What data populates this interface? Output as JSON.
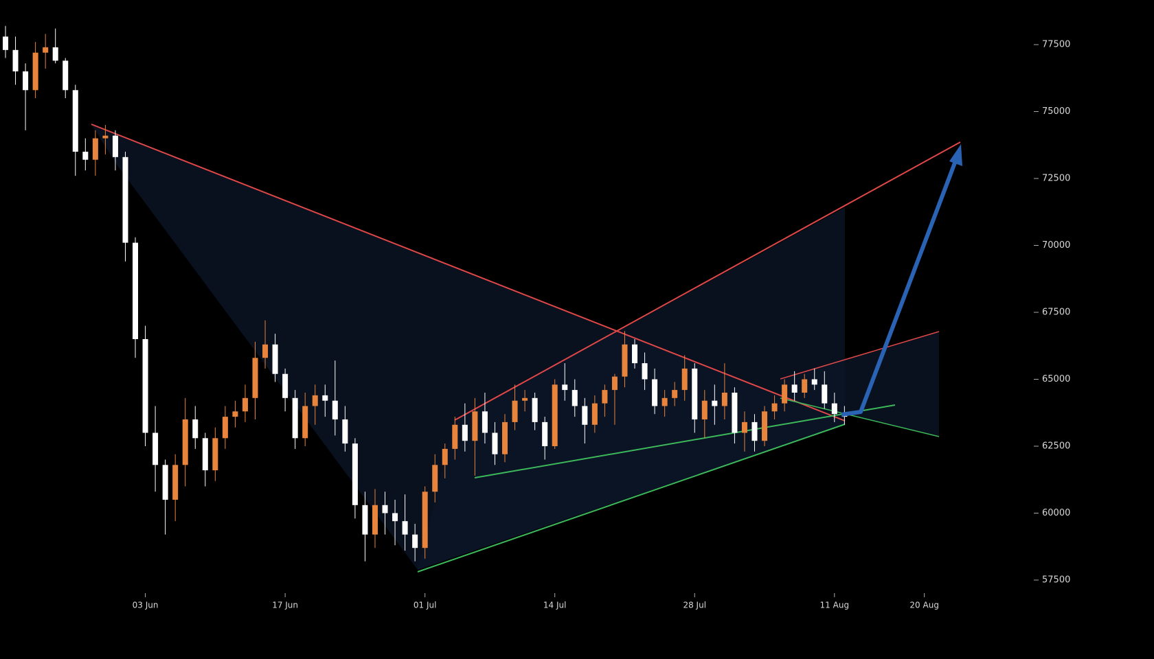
{
  "chart_data": {
    "type": "candlestick",
    "categories": [
      null,
      null,
      null,
      null,
      null,
      null,
      null,
      null,
      null,
      null,
      null,
      null,
      null,
      null,
      "03 Jun",
      null,
      null,
      null,
      null,
      null,
      null,
      null,
      null,
      null,
      null,
      null,
      null,
      null,
      "17 Jun",
      null,
      null,
      null,
      null,
      null,
      null,
      null,
      null,
      null,
      null,
      null,
      null,
      null,
      "01 Jul",
      null,
      null,
      null,
      null,
      null,
      null,
      null,
      null,
      null,
      null,
      null,
      null,
      "14 Jul",
      null,
      null,
      null,
      null,
      null,
      null,
      null,
      null,
      null,
      null,
      null,
      null,
      null,
      "28 Jul",
      null,
      null,
      null,
      null,
      null,
      null,
      null,
      null,
      null,
      null,
      null,
      null,
      null,
      "11 Aug",
      null,
      null,
      null,
      null,
      null,
      null,
      null,
      null,
      "20 Aug"
    ],
    "open": [
      77800,
      77300,
      76500,
      75800,
      77200,
      77400,
      76900,
      75800,
      73500,
      73200,
      74000,
      74100,
      73300,
      70100,
      66500,
      63000,
      61800,
      60500,
      61800,
      63500,
      62800,
      61600,
      62800,
      63600,
      63800,
      64300,
      65800,
      66300,
      65200,
      64300,
      62800,
      64000,
      64400,
      64200,
      63500,
      62600,
      60300,
      59200,
      60300,
      60000,
      59700,
      59200,
      58700,
      60800,
      61800,
      62400,
      63300,
      62700,
      63800,
      63000,
      62200,
      63400,
      64200,
      64300,
      63400,
      62500,
      64800,
      64600,
      64000,
      63300,
      64100,
      64600,
      65100,
      66300,
      65600,
      65000,
      64000,
      64300,
      64600,
      65400,
      63500,
      64200,
      64000,
      64500,
      63000,
      63400,
      62700,
      63800,
      64100,
      64800,
      64500,
      65000,
      64800,
      64100,
      63700,
      null,
      null,
      null,
      null,
      null,
      null,
      null,
      null
    ],
    "high": [
      78200,
      77800,
      76800,
      77600,
      77900,
      78100,
      77000,
      76000,
      74000,
      74300,
      74500,
      74300,
      73500,
      70300,
      67000,
      64000,
      62000,
      62200,
      64300,
      64000,
      63000,
      63200,
      64000,
      64200,
      64800,
      66400,
      67200,
      66700,
      65400,
      64600,
      64500,
      64800,
      64800,
      65700,
      64000,
      62800,
      60800,
      60900,
      60800,
      60500,
      60700,
      59600,
      61000,
      62200,
      62600,
      63600,
      64100,
      64300,
      64500,
      63400,
      63700,
      64800,
      64600,
      64500,
      63600,
      65000,
      65600,
      65000,
      64300,
      64400,
      64800,
      65200,
      66800,
      66500,
      66000,
      65400,
      64600,
      64900,
      65900,
      65600,
      64600,
      64800,
      65600,
      64700,
      63800,
      63700,
      64000,
      64400,
      65000,
      65300,
      65200,
      65400,
      65300,
      64500,
      64000,
      null,
      null,
      null,
      null,
      null,
      null,
      null,
      null
    ],
    "low": [
      77000,
      76000,
      74300,
      75500,
      76600,
      76800,
      75500,
      72600,
      72800,
      72600,
      73400,
      72800,
      69400,
      65800,
      62500,
      60800,
      59200,
      59700,
      61000,
      62400,
      61000,
      61200,
      62400,
      63200,
      63400,
      63500,
      65400,
      64900,
      63800,
      62400,
      62500,
      63300,
      63600,
      62900,
      62300,
      59800,
      58200,
      58700,
      59200,
      58800,
      58600,
      58200,
      58300,
      60400,
      61300,
      62000,
      62300,
      61400,
      62600,
      61800,
      61900,
      63100,
      63800,
      63100,
      62000,
      62400,
      64200,
      63600,
      62600,
      63000,
      63600,
      63300,
      64700,
      65400,
      64600,
      63700,
      63600,
      64000,
      64200,
      63000,
      62800,
      63300,
      63500,
      62600,
      62300,
      62300,
      62500,
      63500,
      63800,
      64200,
      64300,
      64600,
      63900,
      63400,
      63300,
      null,
      null,
      null,
      null,
      null,
      null,
      null,
      null
    ],
    "close": [
      77300,
      76500,
      75800,
      77200,
      77400,
      76900,
      75800,
      73500,
      73200,
      74000,
      74100,
      73300,
      70100,
      66500,
      63000,
      61800,
      60500,
      61800,
      63500,
      62800,
      61600,
      62800,
      63600,
      63800,
      64300,
      65800,
      66300,
      65200,
      64300,
      62800,
      64000,
      64400,
      64200,
      63500,
      62600,
      60300,
      59200,
      60300,
      60000,
      59700,
      59200,
      58700,
      60800,
      61800,
      62400,
      63300,
      62700,
      63800,
      63000,
      62200,
      63400,
      64200,
      64300,
      63400,
      62500,
      64800,
      64600,
      64000,
      63300,
      64100,
      64600,
      65100,
      66300,
      65600,
      65000,
      64000,
      64300,
      64600,
      65400,
      63500,
      64200,
      64000,
      64500,
      63000,
      63400,
      62700,
      63800,
      64100,
      64800,
      64500,
      65000,
      64800,
      64100,
      63700,
      63600,
      null,
      null,
      null,
      null,
      null,
      null,
      null,
      null
    ],
    "up_color": "#e8843c",
    "down_color": "#ffffff",
    "ylim": [
      57000,
      79000
    ],
    "yticks": [
      57500,
      60000,
      62500,
      65000,
      67500,
      70000,
      72500,
      75000,
      77500
    ]
  }
}
